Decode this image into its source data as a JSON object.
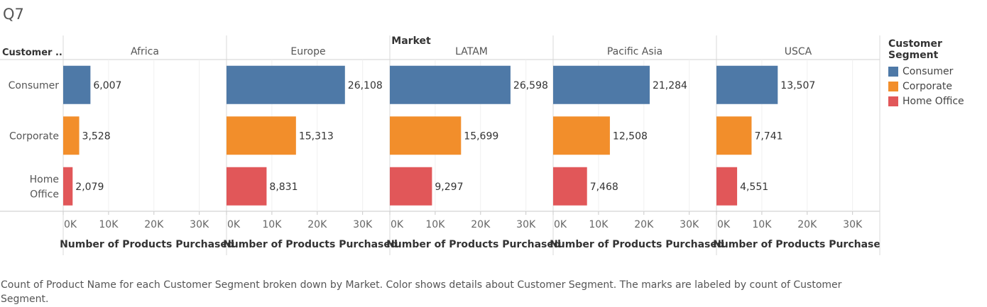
{
  "title": "Q7",
  "caption": "Count of Product Name for each Customer Segment broken down by Market.  Color shows details about Customer Segment.  The marks are labeled by count of Customer Segment.",
  "legend": {
    "title": "Customer Segment",
    "items": [
      {
        "label": "Consumer",
        "color": "#4e79a7"
      },
      {
        "label": "Corporate",
        "color": "#f28e2b"
      },
      {
        "label": "Home Office",
        "color": "#e15759"
      }
    ]
  },
  "chart_data": {
    "type": "bar",
    "orientation": "horizontal",
    "column_header": "Market",
    "row_header": "Customer ..",
    "xlabel": "Number of Products Purchased",
    "xlim": [
      0,
      36000
    ],
    "xticks": [
      {
        "value": 0,
        "label": "0K"
      },
      {
        "value": 10000,
        "label": "10K"
      },
      {
        "value": 20000,
        "label": "20K"
      },
      {
        "value": 30000,
        "label": "30K"
      }
    ],
    "categories": [
      "Consumer",
      "Corporate",
      "Home Office"
    ],
    "category_lines": [
      [
        "Consumer"
      ],
      [
        "Corporate"
      ],
      [
        "Home",
        "Office"
      ]
    ],
    "colors": [
      "#4e79a7",
      "#f28e2b",
      "#e15759"
    ],
    "panels": [
      {
        "market": "Africa",
        "values": [
          6007,
          3528,
          2079
        ],
        "labels": [
          "6,007",
          "3,528",
          "2,079"
        ]
      },
      {
        "market": "Europe",
        "values": [
          26108,
          15313,
          8831
        ],
        "labels": [
          "26,108",
          "15,313",
          "8,831"
        ]
      },
      {
        "market": "LATAM",
        "values": [
          26598,
          15699,
          9297
        ],
        "labels": [
          "26,598",
          "15,699",
          "9,297"
        ]
      },
      {
        "market": "Pacific Asia",
        "values": [
          21284,
          12508,
          7468
        ],
        "labels": [
          "21,284",
          "12,508",
          "7,468"
        ]
      },
      {
        "market": "USCA",
        "values": [
          13507,
          7741,
          4551
        ],
        "labels": [
          "13,507",
          "7,741",
          "4,551"
        ]
      }
    ]
  }
}
